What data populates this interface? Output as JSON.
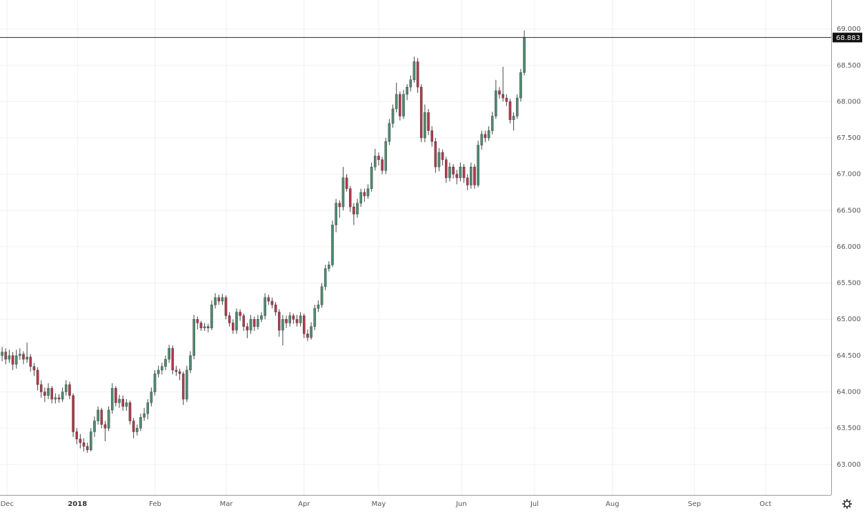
{
  "chart_data": {
    "type": "candlestick",
    "up_color": "#4e8c72",
    "down_color": "#b23a4c",
    "wick_color": "#444",
    "grid": true,
    "xlim": [
      -0.6,
      233.4
    ],
    "ylim": [
      62.58,
      69.4
    ],
    "xticks": [
      {
        "value": 1.4,
        "label": "Dec"
      },
      {
        "value": 21.2,
        "label": "2018"
      },
      {
        "value": 43.1,
        "label": "Feb"
      },
      {
        "value": 63.1,
        "label": "Mar"
      },
      {
        "value": 85.0,
        "label": "Apr"
      },
      {
        "value": 106.0,
        "label": "May"
      },
      {
        "value": 129.3,
        "label": "Jun"
      },
      {
        "value": 149.9,
        "label": "Jul"
      },
      {
        "value": 171.8,
        "label": "Aug"
      },
      {
        "value": 194.9,
        "label": "Sep"
      },
      {
        "value": 214.9,
        "label": "Oct"
      }
    ],
    "yticks": [
      {
        "value": 63,
        "label": "63.000"
      },
      {
        "value": 63.5,
        "label": "63.500"
      },
      {
        "value": 64,
        "label": "64.000"
      },
      {
        "value": 64.5,
        "label": "64.500"
      },
      {
        "value": 65,
        "label": "65.000"
      },
      {
        "value": 65.5,
        "label": "65.500"
      },
      {
        "value": 66,
        "label": "66.000"
      },
      {
        "value": 66.5,
        "label": "66.500"
      },
      {
        "value": 67,
        "label": "67.000"
      },
      {
        "value": 67.5,
        "label": "67.500"
      },
      {
        "value": 68,
        "label": "68.000"
      },
      {
        "value": 68.5,
        "label": "68.500"
      },
      {
        "value": 69,
        "label": "69.000"
      }
    ],
    "last_price": {
      "value": 68.883,
      "label": "68.883"
    },
    "ohlc": [
      [
        64.5,
        64.62,
        64.42,
        64.55
      ],
      [
        64.55,
        64.6,
        64.38,
        64.45
      ],
      [
        64.45,
        64.58,
        64.4,
        64.5
      ],
      [
        64.5,
        64.55,
        64.3,
        64.38
      ],
      [
        64.38,
        64.58,
        64.32,
        64.5
      ],
      [
        64.5,
        64.6,
        64.44,
        64.52
      ],
      [
        64.52,
        64.56,
        64.38,
        64.45
      ],
      [
        64.45,
        64.68,
        64.4,
        64.48
      ],
      [
        64.48,
        64.52,
        64.28,
        64.35
      ],
      [
        64.35,
        64.4,
        64.22,
        64.3
      ],
      [
        64.3,
        64.34,
        64.02,
        64.1
      ],
      [
        64.1,
        64.16,
        63.92,
        64.0
      ],
      [
        64.0,
        64.06,
        63.86,
        63.95
      ],
      [
        63.95,
        64.12,
        63.9,
        64.05
      ],
      [
        64.05,
        64.08,
        63.84,
        63.9
      ],
      [
        63.9,
        63.98,
        63.84,
        63.92
      ],
      [
        63.92,
        63.97,
        63.85,
        63.9
      ],
      [
        63.9,
        64.06,
        63.86,
        64.0
      ],
      [
        64.0,
        64.16,
        63.95,
        64.1
      ],
      [
        64.1,
        64.14,
        63.9,
        63.95
      ],
      [
        63.95,
        63.98,
        63.38,
        63.45
      ],
      [
        63.45,
        63.5,
        63.28,
        63.35
      ],
      [
        63.35,
        63.42,
        63.22,
        63.3
      ],
      [
        63.3,
        63.36,
        63.18,
        63.25
      ],
      [
        63.25,
        63.3,
        63.16,
        63.2
      ],
      [
        63.2,
        63.5,
        63.18,
        63.45
      ],
      [
        63.45,
        63.66,
        63.38,
        63.6
      ],
      [
        63.6,
        63.8,
        63.55,
        63.75
      ],
      [
        63.75,
        63.78,
        63.5,
        63.55
      ],
      [
        63.55,
        63.6,
        63.32,
        63.5
      ],
      [
        63.5,
        63.8,
        63.46,
        63.75
      ],
      [
        63.75,
        64.12,
        63.7,
        64.05
      ],
      [
        64.05,
        64.08,
        63.8,
        63.85
      ],
      [
        63.85,
        63.96,
        63.78,
        63.9
      ],
      [
        63.9,
        63.95,
        63.74,
        63.8
      ],
      [
        63.8,
        63.9,
        63.74,
        63.85
      ],
      [
        63.85,
        63.88,
        63.55,
        63.6
      ],
      [
        63.6,
        63.64,
        63.36,
        63.45
      ],
      [
        63.45,
        63.55,
        63.4,
        63.5
      ],
      [
        63.5,
        63.7,
        63.46,
        63.65
      ],
      [
        63.65,
        63.78,
        63.6,
        63.7
      ],
      [
        63.7,
        63.9,
        63.62,
        63.85
      ],
      [
        63.85,
        64.06,
        63.8,
        64.0
      ],
      [
        64.0,
        64.3,
        63.95,
        64.25
      ],
      [
        64.25,
        64.36,
        64.2,
        64.3
      ],
      [
        64.3,
        64.4,
        64.24,
        64.35
      ],
      [
        64.35,
        64.5,
        64.3,
        64.45
      ],
      [
        64.45,
        64.65,
        64.4,
        64.6
      ],
      [
        64.6,
        64.64,
        64.24,
        64.3
      ],
      [
        64.3,
        64.36,
        64.22,
        64.28
      ],
      [
        64.28,
        64.32,
        64.16,
        64.25
      ],
      [
        64.25,
        64.28,
        63.82,
        63.9
      ],
      [
        63.9,
        64.36,
        63.86,
        64.3
      ],
      [
        64.3,
        64.56,
        64.26,
        64.5
      ],
      [
        64.5,
        65.06,
        64.45,
        65.0
      ],
      [
        65.0,
        65.04,
        64.86,
        64.95
      ],
      [
        64.95,
        64.98,
        64.84,
        64.88
      ],
      [
        64.88,
        64.95,
        64.84,
        64.9
      ],
      [
        64.9,
        64.94,
        64.82,
        64.88
      ],
      [
        64.88,
        65.26,
        64.85,
        65.2
      ],
      [
        65.2,
        65.36,
        65.15,
        65.3
      ],
      [
        65.3,
        65.34,
        65.2,
        65.25
      ],
      [
        65.25,
        65.35,
        65.2,
        65.3
      ],
      [
        65.3,
        65.33,
        65.0,
        65.05
      ],
      [
        65.05,
        65.1,
        64.9,
        64.95
      ],
      [
        64.95,
        65.0,
        64.8,
        64.85
      ],
      [
        64.85,
        65.15,
        64.8,
        65.1
      ],
      [
        65.1,
        65.14,
        64.98,
        65.05
      ],
      [
        65.05,
        65.08,
        64.84,
        64.9
      ],
      [
        64.9,
        64.95,
        64.74,
        64.85
      ],
      [
        64.85,
        65.06,
        64.8,
        65.0
      ],
      [
        65.0,
        65.04,
        64.84,
        64.9
      ],
      [
        64.9,
        65.06,
        64.86,
        65.0
      ],
      [
        65.0,
        65.1,
        64.96,
        65.05
      ],
      [
        65.05,
        65.36,
        65.0,
        65.3
      ],
      [
        65.3,
        65.34,
        65.2,
        65.25
      ],
      [
        65.25,
        65.3,
        65.15,
        65.2
      ],
      [
        65.2,
        65.24,
        65.05,
        65.1
      ],
      [
        65.1,
        65.14,
        64.76,
        64.85
      ],
      [
        64.85,
        65.06,
        64.64,
        65.0
      ],
      [
        65.0,
        65.05,
        64.88,
        64.95
      ],
      [
        64.95,
        65.1,
        64.9,
        65.05
      ],
      [
        65.05,
        65.08,
        64.94,
        65.0
      ],
      [
        65.0,
        65.06,
        64.9,
        64.95
      ],
      [
        64.95,
        65.1,
        64.9,
        65.05
      ],
      [
        65.05,
        65.08,
        64.74,
        64.8
      ],
      [
        64.8,
        64.86,
        64.7,
        64.75
      ],
      [
        64.75,
        64.96,
        64.72,
        64.9
      ],
      [
        64.9,
        65.2,
        64.85,
        65.15
      ],
      [
        65.15,
        65.26,
        65.1,
        65.2
      ],
      [
        65.2,
        65.5,
        65.16,
        65.45
      ],
      [
        65.45,
        65.75,
        65.4,
        65.7
      ],
      [
        65.7,
        65.8,
        65.66,
        65.75
      ],
      [
        65.75,
        66.36,
        65.72,
        66.3
      ],
      [
        66.3,
        66.66,
        66.2,
        66.6
      ],
      [
        66.6,
        66.64,
        66.4,
        66.55
      ],
      [
        66.55,
        67.1,
        66.5,
        66.95
      ],
      [
        66.95,
        67.0,
        66.76,
        66.8
      ],
      [
        66.8,
        66.84,
        66.48,
        66.55
      ],
      [
        66.55,
        66.6,
        66.3,
        66.45
      ],
      [
        66.45,
        66.66,
        66.4,
        66.6
      ],
      [
        66.6,
        66.8,
        66.55,
        66.75
      ],
      [
        66.75,
        66.8,
        66.62,
        66.7
      ],
      [
        66.7,
        66.86,
        66.66,
        66.8
      ],
      [
        66.8,
        67.16,
        66.76,
        67.1
      ],
      [
        67.1,
        67.35,
        67.05,
        67.25
      ],
      [
        67.25,
        67.3,
        67.12,
        67.2
      ],
      [
        67.2,
        67.24,
        67.0,
        67.05
      ],
      [
        67.05,
        67.5,
        67.0,
        67.45
      ],
      [
        67.45,
        67.76,
        67.4,
        67.7
      ],
      [
        67.7,
        67.96,
        67.64,
        67.9
      ],
      [
        67.9,
        68.26,
        67.85,
        68.1
      ],
      [
        68.1,
        68.14,
        67.74,
        67.8
      ],
      [
        67.8,
        68.16,
        67.76,
        68.1
      ],
      [
        68.1,
        68.24,
        68.02,
        68.2
      ],
      [
        68.2,
        68.36,
        68.14,
        68.3
      ],
      [
        68.3,
        68.62,
        68.26,
        68.55
      ],
      [
        68.55,
        68.6,
        68.12,
        68.2
      ],
      [
        68.2,
        68.24,
        67.44,
        67.5
      ],
      [
        67.5,
        67.96,
        67.44,
        67.85
      ],
      [
        67.85,
        67.9,
        67.54,
        67.6
      ],
      [
        67.6,
        67.66,
        67.38,
        67.45
      ],
      [
        67.45,
        67.5,
        67.02,
        67.1
      ],
      [
        67.1,
        67.36,
        67.04,
        67.3
      ],
      [
        67.3,
        67.34,
        67.12,
        67.2
      ],
      [
        67.2,
        67.24,
        66.88,
        66.95
      ],
      [
        66.95,
        67.16,
        66.9,
        67.1
      ],
      [
        67.1,
        67.14,
        66.94,
        67.0
      ],
      [
        67.0,
        67.06,
        66.86,
        66.95
      ],
      [
        66.95,
        67.16,
        66.9,
        67.1
      ],
      [
        67.1,
        67.14,
        66.88,
        66.95
      ],
      [
        66.95,
        67.0,
        66.78,
        66.85
      ],
      [
        66.85,
        67.16,
        66.8,
        67.1
      ],
      [
        67.1,
        67.14,
        66.8,
        66.85
      ],
      [
        66.85,
        67.46,
        66.82,
        67.4
      ],
      [
        67.4,
        67.6,
        67.34,
        67.55
      ],
      [
        67.55,
        67.6,
        67.44,
        67.5
      ],
      [
        67.5,
        67.66,
        67.46,
        67.6
      ],
      [
        67.6,
        67.86,
        67.55,
        67.8
      ],
      [
        67.8,
        68.3,
        67.76,
        68.15
      ],
      [
        68.15,
        68.2,
        68.04,
        68.1
      ],
      [
        68.1,
        68.48,
        68.0,
        68.05
      ],
      [
        68.05,
        68.1,
        67.94,
        68.0
      ],
      [
        68.0,
        68.04,
        67.7,
        67.75
      ],
      [
        67.75,
        67.85,
        67.6,
        67.8
      ],
      [
        67.8,
        68.1,
        67.76,
        68.05
      ],
      [
        68.05,
        68.45,
        68.0,
        68.4
      ],
      [
        68.4,
        68.98,
        68.36,
        68.88
      ]
    ]
  }
}
